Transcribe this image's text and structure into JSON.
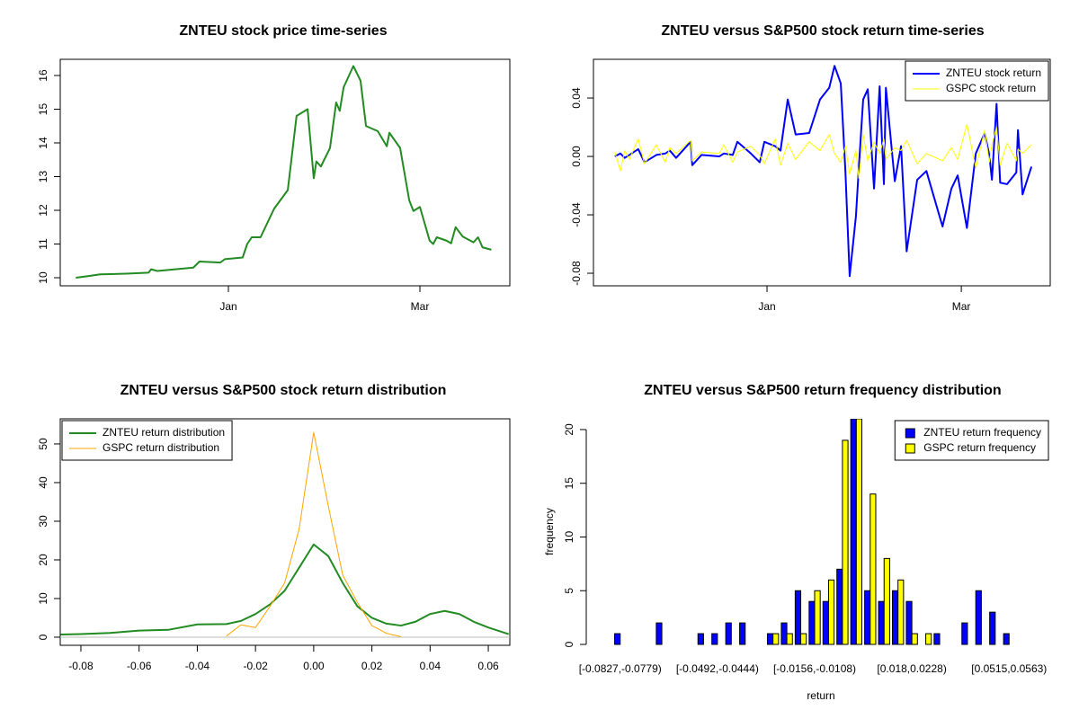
{
  "chart_data": [
    {
      "type": "line",
      "title": "ZNTEU stock price time-series",
      "x": [
        -47,
        -43,
        -39.5,
        -31.5,
        -24.6,
        -23.8,
        -21.9,
        -10.8,
        -8.9,
        -2.5,
        -1.1,
        4.4,
        5.8,
        7.2,
        9.9,
        14.1,
        18.3,
        21,
        24.4,
        26.3,
        27.1,
        28.5,
        31.3,
        33.2,
        34.3,
        35.5,
        38.5,
        40.7,
        42.4,
        46,
        48.8,
        49.6,
        52.9,
        55.7,
        57,
        59,
        62,
        63.1,
        64.2,
        67.2,
        68.6,
        70,
        72.2,
        75.5,
        76.9,
        78.3,
        79.1,
        81
      ],
      "values": [
        10.0,
        10.05,
        10.1,
        10.12,
        10.15,
        10.25,
        10.2,
        10.3,
        10.48,
        10.45,
        10.55,
        10.6,
        11.0,
        11.2,
        11.2,
        12.05,
        12.6,
        14.8,
        15.0,
        12.95,
        13.45,
        13.3,
        13.85,
        15.2,
        14.95,
        15.65,
        16.28,
        15.85,
        14.5,
        14.35,
        13.9,
        14.3,
        13.85,
        12.3,
        11.98,
        12.1,
        11.1,
        11.0,
        11.2,
        11.1,
        11.02,
        11.5,
        11.22,
        11.05,
        11.2,
        10.9,
        10.88,
        10.83
      ],
      "color": "#228B22",
      "xlim": [
        -51.8,
        86.7
      ],
      "xticks": [
        {
          "value": 0,
          "label": "Jan"
        },
        {
          "value": 59,
          "label": "Mar"
        }
      ],
      "ylim": [
        9.76,
        16.48
      ],
      "yticks": [
        10,
        11,
        12,
        13,
        14,
        15,
        16
      ]
    },
    {
      "type": "line",
      "title": "ZNTEU versus S&P500 stock return time-series",
      "x": [
        -46.2,
        -44.5,
        -43.2,
        -41.8,
        -39.1,
        -37.2,
        -33.6,
        -30.9,
        -29.5,
        -27.6,
        -23.2,
        -22.7,
        -19.9,
        -14.5,
        -13.1,
        -10.4,
        -9,
        -4.9,
        -2.2,
        -0.8,
        2.5,
        4.1,
        6.3,
        8.7,
        12.8,
        16.1,
        18.9,
        20.5,
        22.4,
        23.8,
        25.1,
        27,
        27.9,
        29.2,
        30.6,
        32.5,
        34.2,
        35.5,
        36.1,
        38.8,
        40.7,
        42.4,
        45.6,
        48.4,
        53.3,
        56,
        57.9,
        60.7,
        63.4,
        66.1,
        67.5,
        68.3,
        69.7,
        70.8,
        72.9,
        75.7,
        76.2,
        77.6,
        80.3
      ],
      "series": [
        {
          "name": "ZNTEU stock return",
          "color": "#0000FF",
          "values": [
            0,
            0.002,
            -0.001,
            0.001,
            0.005,
            -0.004,
            0.001,
            0.002,
            0.004,
            -0.001,
            0.01,
            -0.006,
            0.001,
            0,
            0.002,
            0.001,
            0.01,
            0.002,
            -0.004,
            0.01,
            0.007,
            0.004,
            0.039,
            0.015,
            0.016,
            0.039,
            0.047,
            0.062,
            0.05,
            -0.01,
            -0.082,
            -0.041,
            -0.007,
            0.039,
            0.046,
            -0.022,
            0.048,
            -0.019,
            0.047,
            -0.017,
            0.007,
            -0.065,
            -0.016,
            -0.01,
            -0.048,
            -0.022,
            -0.013,
            -0.049,
            0.002,
            0.016,
            0.001,
            -0.016,
            0.036,
            -0.018,
            -0.019,
            -0.011,
            0.018,
            -0.026,
            -0.007
          ]
        },
        {
          "name": "GSPC stock return",
          "color": "#FFFF00",
          "values": [
            0.003,
            -0.01,
            0.004,
            -0.002,
            0.012,
            -0.005,
            0.008,
            -0.004,
            0.006,
            0.002,
            0.011,
            -0.003,
            0.003,
            0.002,
            0.008,
            -0.004,
            0.003,
            0.007,
            0.001,
            -0.005,
            0.012,
            -0.006,
            0.009,
            -0.002,
            0.01,
            0.004,
            0.015,
            0.002,
            -0.004,
            0.007,
            -0.012,
            0.004,
            -0.015,
            0.015,
            -0.003,
            0.01,
            0.002,
            0.012,
            -0.002,
            0.006,
            0.004,
            0.011,
            -0.005,
            0.002,
            -0.003,
            0.006,
            -0.002,
            0.022,
            -0.008,
            0.018,
            -0.004,
            0.008,
            0.02,
            -0.006,
            0.009,
            -0.003,
            0.005,
            0.002,
            0.008
          ]
        }
      ],
      "legend": "topright",
      "xlim": [
        -52.7,
        86.0
      ],
      "xticks": [
        {
          "value": 0,
          "label": "Jan"
        },
        {
          "value": 59,
          "label": "Mar"
        }
      ],
      "ylim": [
        -0.0886,
        0.0665
      ],
      "yticks": [
        -0.08,
        -0.04,
        {
          "value": 0,
          "label": "0.00"
        },
        0.04
      ]
    },
    {
      "type": "line",
      "title": "ZNTEU versus S&P500 stock return distribution",
      "x": [
        -0.087,
        -0.08,
        -0.07,
        -0.06,
        -0.05,
        -0.04,
        -0.03,
        -0.025,
        -0.02,
        -0.015,
        -0.01,
        -0.005,
        0,
        0.005,
        0.01,
        0.015,
        0.02,
        0.025,
        0.03,
        0.035,
        0.04,
        0.045,
        0.05,
        0.055,
        0.06,
        0.067
      ],
      "series": [
        {
          "name": "ZNTEU return distribution",
          "color": "#228B22",
          "values": [
            0.7,
            0.8,
            1.1,
            1.7,
            1.9,
            3.3,
            3.4,
            4.2,
            6,
            8.5,
            12,
            18,
            24,
            21,
            14,
            8,
            5,
            3.5,
            3,
            4,
            6,
            6.8,
            6,
            4,
            2.5,
            0.8
          ]
        },
        {
          "name": "GSPC return distribution",
          "color": "#FFA500",
          "values": [
            null,
            null,
            null,
            null,
            null,
            null,
            0.3,
            3.2,
            2.5,
            8,
            14,
            28,
            53,
            34,
            16,
            9,
            3,
            1,
            0.1,
            null,
            null,
            null,
            null,
            null,
            null,
            null
          ]
        }
      ],
      "legend": "topleft",
      "xlim": [
        -0.0871,
        0.0674
      ],
      "xticks": [
        -0.08,
        -0.06,
        -0.04,
        -0.02,
        {
          "value": 0,
          "label": "0.00"
        },
        0.02,
        0.04,
        0.06
      ],
      "ylim": [
        -2.1,
        56.5
      ],
      "yticks": [
        0,
        10,
        20,
        30,
        40,
        50
      ]
    },
    {
      "type": "bar",
      "title": "ZNTEU versus S&P500 return frequency distribution",
      "xlabel": "return",
      "ylabel": "frequency",
      "categories": [
        "[-0.0827,-0.0779)",
        null,
        null,
        null,
        null,
        null,
        null,
        "[-0.0492,-0.0444)",
        null,
        null,
        null,
        null,
        null,
        null,
        "[-0.0156,-0.0108)",
        null,
        null,
        null,
        null,
        null,
        null,
        "[0.018,0.0228)",
        null,
        null,
        null,
        null,
        null,
        null,
        "[0.0515,0.0563)"
      ],
      "series": [
        {
          "name": "ZNTEU return frequency",
          "color": "#0000FF",
          "values": [
            1,
            0,
            0,
            2,
            0,
            0,
            1,
            1,
            2,
            2,
            0,
            1,
            2,
            5,
            4,
            4,
            7,
            21,
            5,
            4,
            5,
            4,
            0,
            1,
            0,
            2,
            5,
            3,
            1
          ]
        },
        {
          "name": "GSPC return frequency",
          "color": "#FFFF00",
          "values": [
            0,
            0,
            0,
            0,
            0,
            0,
            0,
            0,
            0,
            0,
            0,
            1,
            1,
            1,
            5,
            6,
            19,
            21,
            14,
            8,
            6,
            1,
            1,
            0,
            0,
            0,
            0,
            0,
            0
          ]
        }
      ],
      "legend": "topright",
      "ylim": [
        0,
        21
      ],
      "yticks": [
        0,
        5,
        10,
        15,
        20
      ]
    }
  ]
}
